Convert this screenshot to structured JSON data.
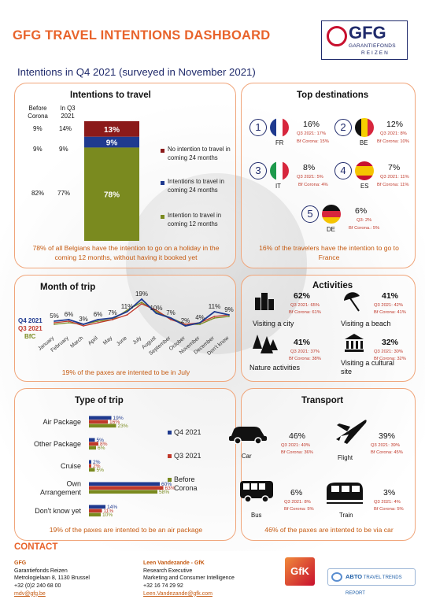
{
  "header": {
    "title": "GFG TRAVEL INTENTIONS DASHBOARD",
    "subtitle": "Intentions in Q4 2021 (surveyed in November 2021)",
    "logo": {
      "name": "GFG",
      "line1": "GARANTIEFONDS",
      "line2": "REIZEN"
    }
  },
  "intentions": {
    "title": "Intentions to travel",
    "col_before": "Before Corona",
    "col_q3": "In Q3 2021",
    "rows": [
      {
        "before": "9%",
        "q3": "14%"
      },
      {
        "before": "9%",
        "q3": "9%"
      },
      {
        "before": "82%",
        "q3": "77%"
      }
    ],
    "footer": "78% of all Belgians have the intention to go on a holiday in the coming 12 months, without having it booked yet"
  },
  "destinations": {
    "title": "Top destinations",
    "items": [
      {
        "rank": "1",
        "code": "FR",
        "pct": "16%",
        "q3": "Q3 2021: 17%",
        "bf": "Bf Corona: 15%"
      },
      {
        "rank": "2",
        "code": "BE",
        "pct": "12%",
        "q3": "Q3 2021: 8%",
        "bf": "Bf Corona: 10%"
      },
      {
        "rank": "3",
        "code": "IT",
        "pct": "8%",
        "q3": "Q3 2021: 5%",
        "bf": "Bf Corona: 4%"
      },
      {
        "rank": "4",
        "code": "ES",
        "pct": "7%",
        "q3": "Q3 2021: 11%",
        "bf": "Bf Corona: 11%"
      },
      {
        "rank": "5",
        "code": "DE",
        "pct": "6%",
        "q3": "Q3: 2%",
        "bf": "Bf Corona.: 5%"
      }
    ],
    "footer": "16% of the travelers have the intention to go to France"
  },
  "month": {
    "title": "Month of trip",
    "series_labels": [
      "Q4 2021",
      "Q3 2021",
      "BfC"
    ],
    "footer": "19% of the paxes are intented to be in July"
  },
  "activities": {
    "title": "Activities",
    "items": [
      {
        "label": "Visiting a city",
        "pct": "62%",
        "q3": "Q3 2021: 65%",
        "bf": "Bf Corona: 61%"
      },
      {
        "label": "Visiting a beach",
        "pct": "41%",
        "q3": "Q3 2021: 42%",
        "bf": "Bf Corona: 41%"
      },
      {
        "label": "Nature activities",
        "pct": "41%",
        "q3": "Q3 2021: 37%",
        "bf": "Bf Corona: 38%"
      },
      {
        "label": "Visiting a cultural site",
        "pct": "32%",
        "q3": "Q3 2021: 30%",
        "bf": "Bf Corona: 32%"
      }
    ]
  },
  "type_of_trip": {
    "title": "Type of trip",
    "footer": "19% of the paxes are intented to be an air package"
  },
  "transport": {
    "title": "Transport",
    "items": [
      {
        "label": "Car",
        "pct": "46%",
        "q3": "Q3 2021: 40%",
        "bf": "Bf Corona: 36%"
      },
      {
        "label": "Flight",
        "pct": "39%",
        "q3": "Q3 2021: 39%",
        "bf": "Bf Corona: 45%"
      },
      {
        "label": "Bus",
        "pct": "6%",
        "q3": "Q3 2021: 8%",
        "bf": "Bf Corona: 5%"
      },
      {
        "label": "Train",
        "pct": "3%",
        "q3": "Q3 2021: 4%",
        "bf": "Bf Corona: 5%"
      }
    ],
    "footer": "46% of the paxes are intented to be via car"
  },
  "contact": {
    "title": "CONTACT",
    "gfg": {
      "name": "GFG",
      "l1": "Garantiefonds Reizen",
      "l2": "Metrologielaan 8, 1130 Brussel",
      "l3": "+32 (0)2 240 68 00",
      "email": "mdv@gfg.be"
    },
    "gfk": {
      "name": "Leen Vandezande - GfK",
      "l1": "Research Executive",
      "l2": "Marketing and Consumer Intelligence",
      "l3": "+32 16 74 29 92",
      "email": "Leen.Vandezande@gfk.com"
    },
    "gfk_logo": "GfK",
    "abto_logo": "ABTO",
    "abto_sub": "TRAVEL TRENDS REPORT"
  },
  "colors": {
    "accent": "#e8632b",
    "navy": "#1f2a6b",
    "q4": "#1f3a8f",
    "q3": "#c0392b",
    "bfc": "#7a8a1f",
    "border": "#f0a57a"
  },
  "chart_data": [
    {
      "type": "bar",
      "title": "Intentions to travel",
      "stacked": true,
      "categories": [
        "Q4 2021"
      ],
      "series": [
        {
          "name": "No intention to travel in coming 24 months",
          "values": [
            13
          ]
        },
        {
          "name": "Intentions to travel in coming 24 months",
          "values": [
            9
          ]
        },
        {
          "name": "Intention to travel in coming 12 months",
          "values": [
            78
          ]
        }
      ]
    },
    {
      "type": "line",
      "title": "Month of trip",
      "categories": [
        "January",
        "February",
        "March",
        "April",
        "May",
        "June",
        "July",
        "August",
        "September",
        "October",
        "November",
        "December",
        "Don't know"
      ],
      "series": [
        {
          "name": "Q4 2021",
          "values": [
            5,
            6,
            3,
            6,
            7,
            11,
            19,
            10,
            7,
            2,
            4,
            11,
            9
          ]
        },
        {
          "name": "Q3 2021",
          "values": [
            4,
            5,
            2,
            4,
            6,
            9,
            16,
            12,
            6,
            3,
            4,
            8,
            9
          ]
        },
        {
          "name": "BfC",
          "values": [
            3,
            4,
            3,
            5,
            6,
            12,
            17,
            11,
            7,
            3,
            3,
            7,
            8
          ]
        }
      ]
    },
    {
      "type": "bar",
      "title": "Type of trip",
      "orientation": "horizontal",
      "categories": [
        "Air Package",
        "Other Package",
        "Cruise",
        "Own Arrangement",
        "Don't know yet"
      ],
      "series": [
        {
          "name": "Q4 2021",
          "values": [
            19,
            5,
            2,
            60,
            14
          ]
        },
        {
          "name": "Q3 2021",
          "values": [
            16,
            8,
            2,
            63,
            11
          ]
        },
        {
          "name": "Before Corona",
          "values": [
            23,
            6,
            5,
            58,
            10
          ]
        }
      ],
      "xlim": [
        0,
        70
      ]
    }
  ]
}
